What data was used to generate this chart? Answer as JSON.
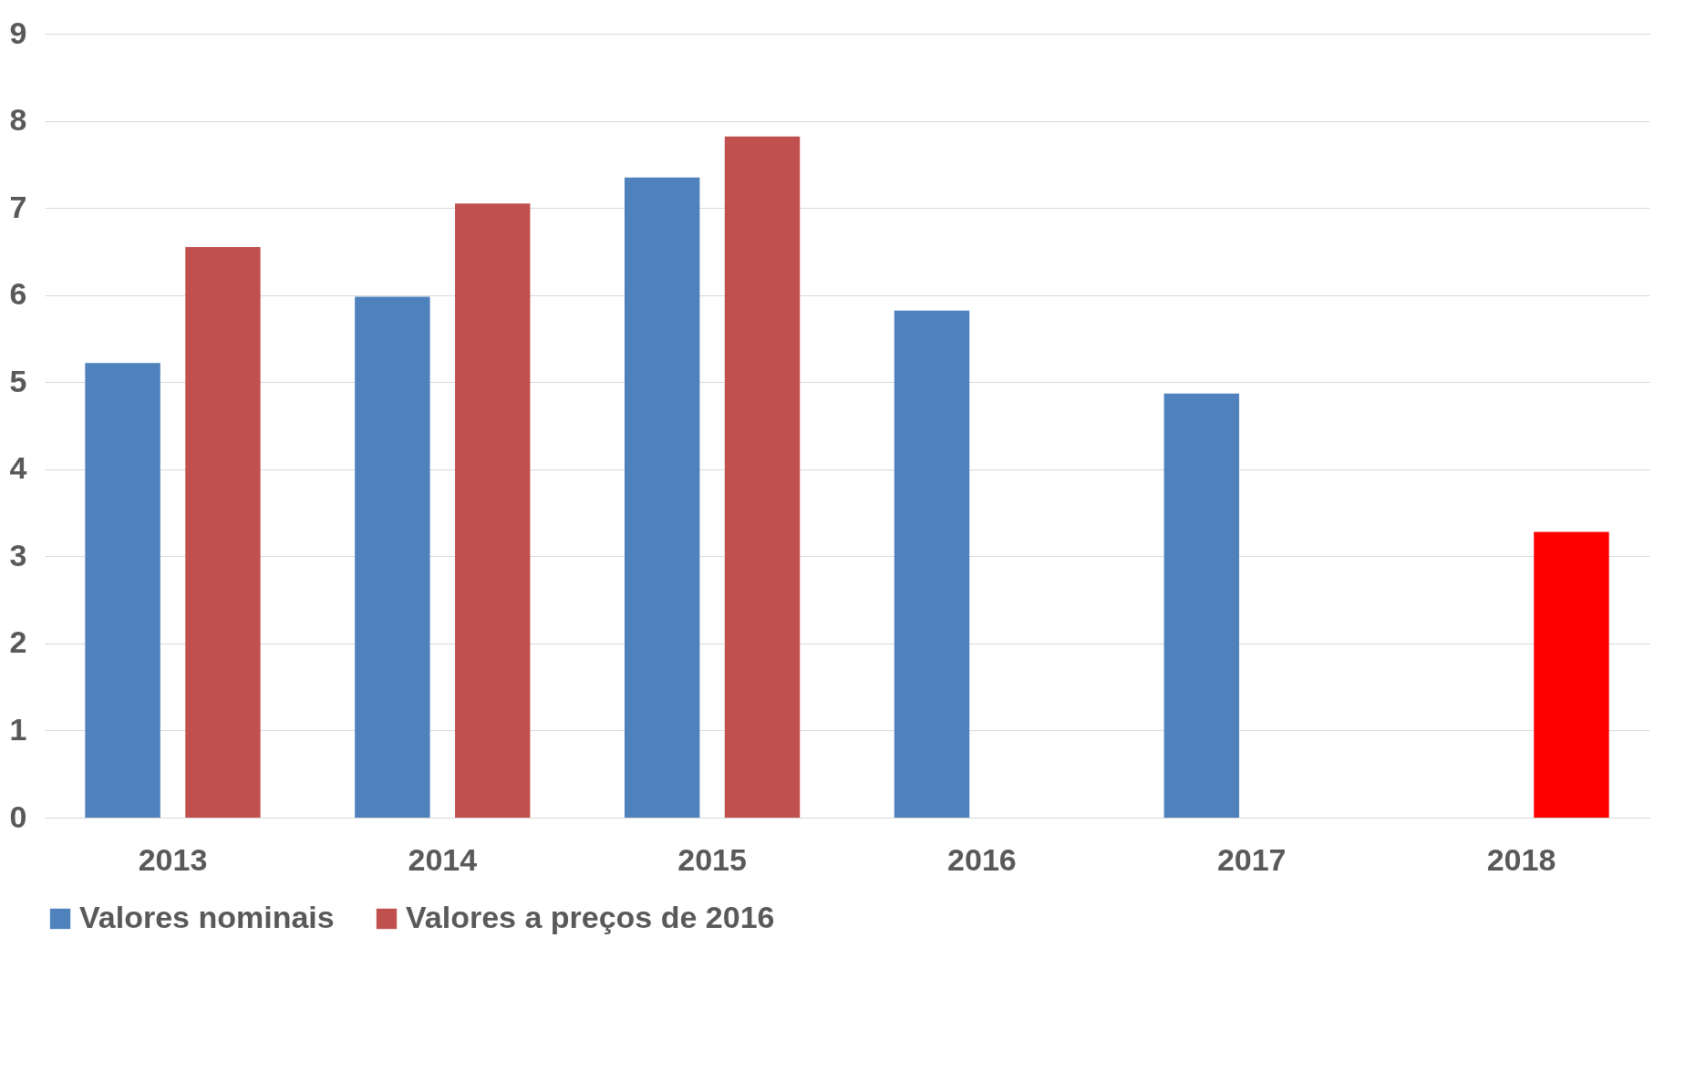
{
  "chart_data": {
    "type": "bar",
    "categories": [
      "2013",
      "2014",
      "2015",
      "2016",
      "2017",
      "2018"
    ],
    "series": [
      {
        "name": "Valores nominais",
        "color": "#4f81bd",
        "values": [
          5.22,
          5.98,
          7.35,
          5.82,
          4.87,
          null
        ]
      },
      {
        "name": "Valores a preços de 2016",
        "color": "#c0504d",
        "colors": [
          "#c0504d",
          "#c0504d",
          "#c0504d",
          null,
          null,
          "#ff0000"
        ],
        "values": [
          6.55,
          7.05,
          7.82,
          null,
          null,
          3.28
        ]
      }
    ],
    "ylim": [
      0,
      9
    ],
    "yticks": [
      0,
      1,
      2,
      3,
      4,
      5,
      6,
      7,
      8,
      9
    ],
    "grid": "y",
    "legend": "bottom"
  }
}
